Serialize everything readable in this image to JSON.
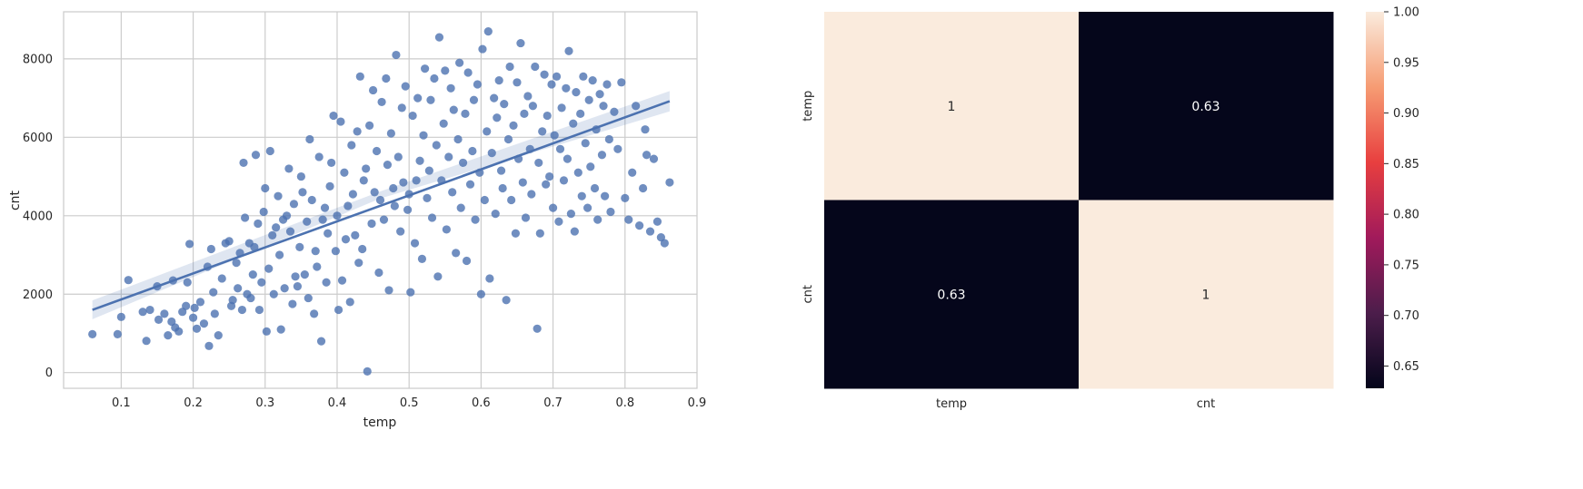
{
  "chart_data": [
    {
      "type": "scatter",
      "xlabel": "temp",
      "ylabel": "cnt",
      "xlim": [
        0.02,
        0.9
      ],
      "ylim": [
        -400,
        9200
      ],
      "xticks": [
        "0.1",
        "0.2",
        "0.3",
        "0.4",
        "0.5",
        "0.6",
        "0.7",
        "0.8",
        "0.9"
      ],
      "xtick_values": [
        0.1,
        0.2,
        0.3,
        0.4,
        0.5,
        0.6,
        0.7,
        0.8,
        0.9
      ],
      "yticks": [
        "0",
        "2000",
        "4000",
        "6000",
        "8000"
      ],
      "ytick_values": [
        0,
        2000,
        4000,
        6000,
        8000
      ],
      "grid": true,
      "point_color": "#4c72b0",
      "points": [
        [
          0.06,
          980
        ],
        [
          0.095,
          980
        ],
        [
          0.1,
          1420
        ],
        [
          0.11,
          2360
        ],
        [
          0.13,
          1550
        ],
        [
          0.135,
          810
        ],
        [
          0.14,
          1600
        ],
        [
          0.15,
          2200
        ],
        [
          0.152,
          1350
        ],
        [
          0.16,
          1500
        ],
        [
          0.165,
          950
        ],
        [
          0.17,
          1300
        ],
        [
          0.172,
          2350
        ],
        [
          0.175,
          1150
        ],
        [
          0.18,
          1050
        ],
        [
          0.185,
          1550
        ],
        [
          0.19,
          1700
        ],
        [
          0.192,
          2300
        ],
        [
          0.195,
          3280
        ],
        [
          0.2,
          1400
        ],
        [
          0.202,
          1650
        ],
        [
          0.205,
          1120
        ],
        [
          0.21,
          1800
        ],
        [
          0.215,
          1250
        ],
        [
          0.22,
          2700
        ],
        [
          0.222,
          680
        ],
        [
          0.225,
          3150
        ],
        [
          0.228,
          2050
        ],
        [
          0.23,
          1500
        ],
        [
          0.235,
          950
        ],
        [
          0.24,
          2400
        ],
        [
          0.245,
          3300
        ],
        [
          0.25,
          3350
        ],
        [
          0.253,
          1700
        ],
        [
          0.255,
          1850
        ],
        [
          0.26,
          2800
        ],
        [
          0.262,
          2150
        ],
        [
          0.265,
          3050
        ],
        [
          0.268,
          1600
        ],
        [
          0.27,
          5350
        ],
        [
          0.272,
          3950
        ],
        [
          0.275,
          2000
        ],
        [
          0.278,
          3300
        ],
        [
          0.28,
          1900
        ],
        [
          0.283,
          2500
        ],
        [
          0.285,
          3200
        ],
        [
          0.287,
          5550
        ],
        [
          0.29,
          3800
        ],
        [
          0.292,
          1600
        ],
        [
          0.295,
          2300
        ],
        [
          0.298,
          4100
        ],
        [
          0.3,
          4700
        ],
        [
          0.302,
          1050
        ],
        [
          0.305,
          2650
        ],
        [
          0.307,
          5650
        ],
        [
          0.31,
          3500
        ],
        [
          0.312,
          2000
        ],
        [
          0.315,
          3700
        ],
        [
          0.318,
          4500
        ],
        [
          0.32,
          3000
        ],
        [
          0.322,
          1100
        ],
        [
          0.325,
          3900
        ],
        [
          0.327,
          2150
        ],
        [
          0.33,
          4000
        ],
        [
          0.333,
          5200
        ],
        [
          0.335,
          3600
        ],
        [
          0.338,
          1750
        ],
        [
          0.34,
          4300
        ],
        [
          0.342,
          2450
        ],
        [
          0.345,
          2200
        ],
        [
          0.348,
          3200
        ],
        [
          0.35,
          5000
        ],
        [
          0.352,
          4600
        ],
        [
          0.355,
          2500
        ],
        [
          0.358,
          3850
        ],
        [
          0.36,
          1900
        ],
        [
          0.362,
          5950
        ],
        [
          0.365,
          4400
        ],
        [
          0.368,
          1500
        ],
        [
          0.37,
          3100
        ],
        [
          0.372,
          2700
        ],
        [
          0.375,
          5500
        ],
        [
          0.378,
          800
        ],
        [
          0.38,
          3900
        ],
        [
          0.383,
          4200
        ],
        [
          0.385,
          2300
        ],
        [
          0.387,
          3550
        ],
        [
          0.39,
          4750
        ],
        [
          0.392,
          5350
        ],
        [
          0.395,
          6550
        ],
        [
          0.398,
          3100
        ],
        [
          0.4,
          4000
        ],
        [
          0.402,
          1600
        ],
        [
          0.405,
          6400
        ],
        [
          0.407,
          2350
        ],
        [
          0.41,
          5100
        ],
        [
          0.412,
          3400
        ],
        [
          0.415,
          4250
        ],
        [
          0.418,
          1800
        ],
        [
          0.42,
          5800
        ],
        [
          0.422,
          4550
        ],
        [
          0.425,
          3500
        ],
        [
          0.428,
          6150
        ],
        [
          0.43,
          2800
        ],
        [
          0.432,
          7550
        ],
        [
          0.435,
          3150
        ],
        [
          0.437,
          4900
        ],
        [
          0.44,
          5200
        ],
        [
          0.442,
          30
        ],
        [
          0.445,
          6300
        ],
        [
          0.448,
          3800
        ],
        [
          0.45,
          7200
        ],
        [
          0.452,
          4600
        ],
        [
          0.455,
          5650
        ],
        [
          0.458,
          2550
        ],
        [
          0.46,
          4400
        ],
        [
          0.462,
          6900
        ],
        [
          0.465,
          3900
        ],
        [
          0.468,
          7500
        ],
        [
          0.47,
          5300
        ],
        [
          0.472,
          2100
        ],
        [
          0.475,
          6100
        ],
        [
          0.478,
          4700
        ],
        [
          0.48,
          4250
        ],
        [
          0.482,
          8100
        ],
        [
          0.485,
          5500
        ],
        [
          0.488,
          3600
        ],
        [
          0.49,
          6750
        ],
        [
          0.492,
          4850
        ],
        [
          0.495,
          7300
        ],
        [
          0.498,
          4150
        ],
        [
          0.5,
          4550
        ],
        [
          0.502,
          2050
        ],
        [
          0.505,
          6550
        ],
        [
          0.508,
          3300
        ],
        [
          0.51,
          4900
        ],
        [
          0.512,
          7000
        ],
        [
          0.515,
          5400
        ],
        [
          0.518,
          2900
        ],
        [
          0.52,
          6050
        ],
        [
          0.522,
          7750
        ],
        [
          0.525,
          4450
        ],
        [
          0.528,
          5150
        ],
        [
          0.53,
          6950
        ],
        [
          0.532,
          3950
        ],
        [
          0.535,
          7500
        ],
        [
          0.538,
          5800
        ],
        [
          0.54,
          2450
        ],
        [
          0.542,
          8550
        ],
        [
          0.545,
          4900
        ],
        [
          0.548,
          6350
        ],
        [
          0.55,
          7700
        ],
        [
          0.552,
          3650
        ],
        [
          0.555,
          5500
        ],
        [
          0.558,
          7250
        ],
        [
          0.56,
          4600
        ],
        [
          0.562,
          6700
        ],
        [
          0.565,
          3050
        ],
        [
          0.568,
          5950
        ],
        [
          0.57,
          7900
        ],
        [
          0.572,
          4200
        ],
        [
          0.575,
          5350
        ],
        [
          0.578,
          6600
        ],
        [
          0.58,
          2850
        ],
        [
          0.582,
          7650
        ],
        [
          0.585,
          4800
        ],
        [
          0.588,
          5650
        ],
        [
          0.59,
          6950
        ],
        [
          0.592,
          3900
        ],
        [
          0.595,
          7350
        ],
        [
          0.598,
          5100
        ],
        [
          0.6,
          2000
        ],
        [
          0.602,
          8250
        ],
        [
          0.605,
          4400
        ],
        [
          0.608,
          6150
        ],
        [
          0.61,
          8700
        ],
        [
          0.612,
          2400
        ],
        [
          0.615,
          5600
        ],
        [
          0.618,
          7000
        ],
        [
          0.62,
          4050
        ],
        [
          0.622,
          6500
        ],
        [
          0.625,
          7450
        ],
        [
          0.628,
          5150
        ],
        [
          0.63,
          4700
        ],
        [
          0.632,
          6850
        ],
        [
          0.635,
          1850
        ],
        [
          0.638,
          5950
        ],
        [
          0.64,
          7800
        ],
        [
          0.642,
          4400
        ],
        [
          0.645,
          6300
        ],
        [
          0.648,
          3550
        ],
        [
          0.65,
          7400
        ],
        [
          0.652,
          5450
        ],
        [
          0.655,
          8400
        ],
        [
          0.658,
          4850
        ],
        [
          0.66,
          6600
        ],
        [
          0.662,
          3950
        ],
        [
          0.665,
          7050
        ],
        [
          0.668,
          5700
        ],
        [
          0.67,
          4550
        ],
        [
          0.672,
          6800
        ],
        [
          0.675,
          7800
        ],
        [
          0.678,
          1120
        ],
        [
          0.68,
          5350
        ],
        [
          0.682,
          3550
        ],
        [
          0.685,
          6150
        ],
        [
          0.688,
          7600
        ],
        [
          0.69,
          4800
        ],
        [
          0.692,
          6550
        ],
        [
          0.695,
          5000
        ],
        [
          0.698,
          7350
        ],
        [
          0.7,
          4200
        ],
        [
          0.702,
          6050
        ],
        [
          0.705,
          7550
        ],
        [
          0.708,
          3850
        ],
        [
          0.71,
          5700
        ],
        [
          0.712,
          6750
        ],
        [
          0.715,
          4900
        ],
        [
          0.718,
          7250
        ],
        [
          0.72,
          5450
        ],
        [
          0.722,
          8200
        ],
        [
          0.725,
          4050
        ],
        [
          0.728,
          6350
        ],
        [
          0.73,
          3600
        ],
        [
          0.732,
          7150
        ],
        [
          0.735,
          5100
        ],
        [
          0.738,
          6600
        ],
        [
          0.74,
          4500
        ],
        [
          0.742,
          7550
        ],
        [
          0.745,
          5850
        ],
        [
          0.748,
          4200
        ],
        [
          0.75,
          6950
        ],
        [
          0.752,
          5250
        ],
        [
          0.755,
          7450
        ],
        [
          0.758,
          4700
        ],
        [
          0.76,
          6200
        ],
        [
          0.762,
          3900
        ],
        [
          0.765,
          7100
        ],
        [
          0.768,
          5550
        ],
        [
          0.77,
          6800
        ],
        [
          0.772,
          4500
        ],
        [
          0.775,
          7350
        ],
        [
          0.778,
          5950
        ],
        [
          0.78,
          4100
        ],
        [
          0.785,
          6650
        ],
        [
          0.79,
          5700
        ],
        [
          0.795,
          7400
        ],
        [
          0.8,
          4450
        ],
        [
          0.805,
          3900
        ],
        [
          0.81,
          5100
        ],
        [
          0.815,
          6800
        ],
        [
          0.82,
          3750
        ],
        [
          0.825,
          4700
        ],
        [
          0.828,
          6200
        ],
        [
          0.83,
          5550
        ],
        [
          0.835,
          3600
        ],
        [
          0.84,
          5450
        ],
        [
          0.845,
          3850
        ],
        [
          0.85,
          3450
        ],
        [
          0.855,
          3300
        ],
        [
          0.862,
          4850
        ]
      ],
      "regression": {
        "color": "#4c72b0",
        "line": [
          [
            0.06,
            1600
          ],
          [
            0.862,
            6920
          ]
        ],
        "ci_upper": [
          [
            0.06,
            1840
          ],
          [
            0.46,
            4620
          ],
          [
            0.862,
            7180
          ]
        ],
        "ci_lower": [
          [
            0.06,
            1360
          ],
          [
            0.46,
            4440
          ],
          [
            0.862,
            6660
          ]
        ]
      }
    },
    {
      "type": "heatmap",
      "x_labels": [
        "temp",
        "cnt"
      ],
      "y_labels": [
        "temp",
        "cnt"
      ],
      "values": [
        [
          1,
          0.63
        ],
        [
          0.63,
          1
        ]
      ],
      "annotations": [
        [
          "1",
          "0.63"
        ],
        [
          "0.63",
          "1"
        ]
      ],
      "colorbar": {
        "min": 0.628,
        "max": 1.0,
        "ticks": [
          "0.65",
          "0.70",
          "0.75",
          "0.80",
          "0.85",
          "0.90",
          "0.95",
          "1.00"
        ],
        "tick_values": [
          0.65,
          0.7,
          0.75,
          0.8,
          0.85,
          0.9,
          0.95,
          1.0
        ],
        "colormap": [
          "#03051a",
          "#4c1d4b",
          "#a11a5b",
          "#e83f3f",
          "#f69c73",
          "#faebdd"
        ]
      }
    }
  ]
}
